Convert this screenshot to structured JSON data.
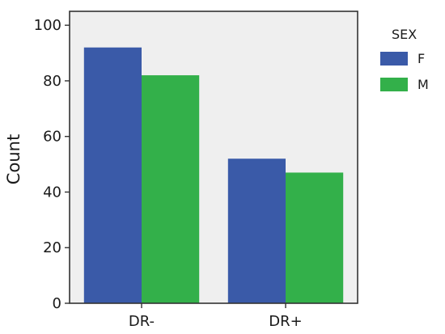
{
  "chart_data": {
    "type": "bar",
    "categories": [
      "DR-",
      "DR+"
    ],
    "series": [
      {
        "name": "F",
        "values": [
          92,
          52
        ],
        "color": "#3a5aa8"
      },
      {
        "name": "M",
        "values": [
          82,
          47
        ],
        "color": "#33b04a"
      }
    ],
    "xlabel": "",
    "ylabel": "Count",
    "ylim": [
      0,
      105
    ],
    "yticks": [
      0,
      20,
      40,
      60,
      80,
      100
    ],
    "grid": false,
    "legend": {
      "title": "SEX",
      "placement": "outside-right"
    },
    "plot_background": "#efefef"
  }
}
